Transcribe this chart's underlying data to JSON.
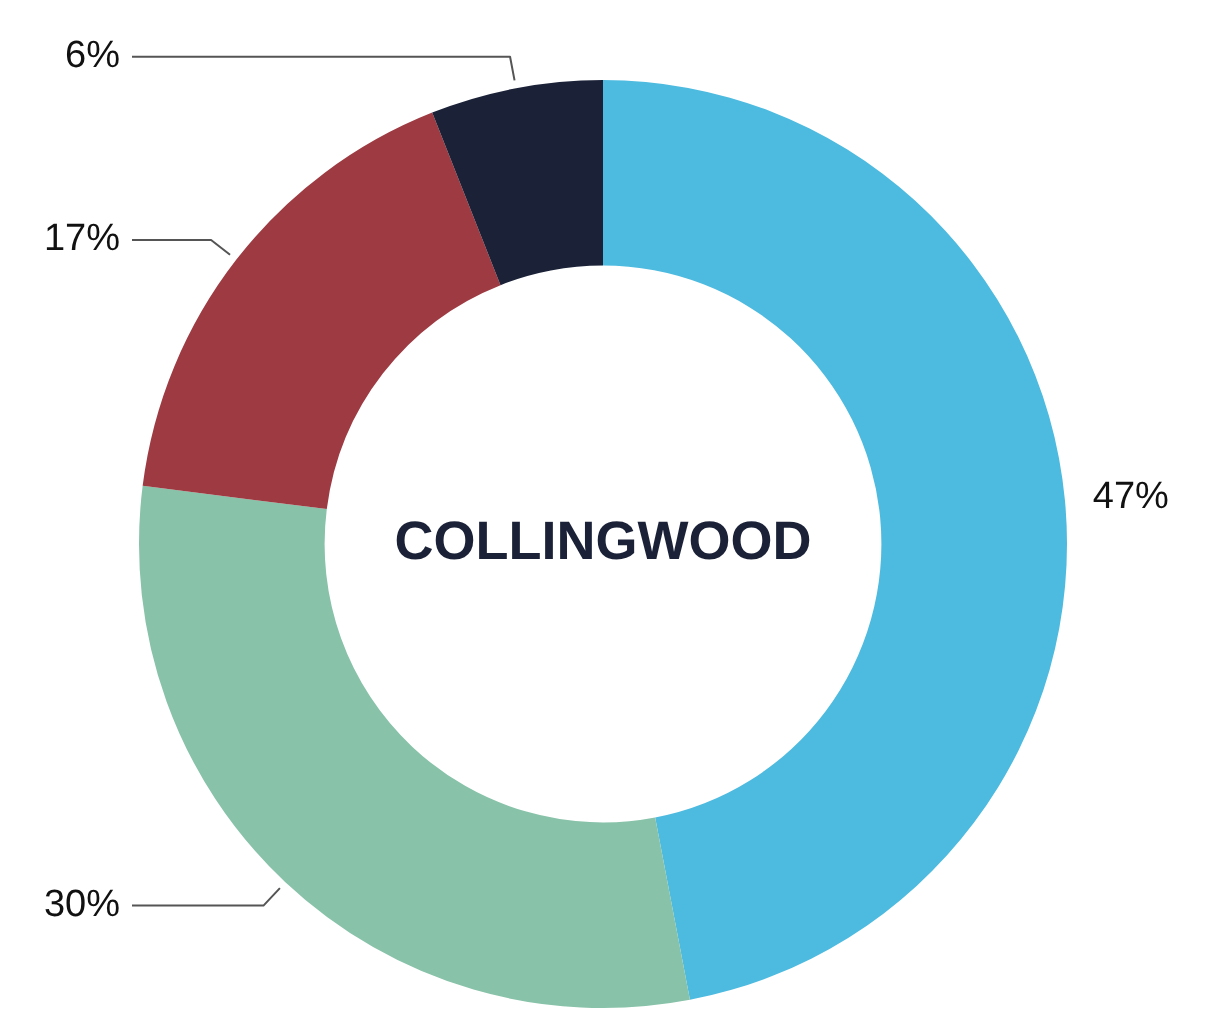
{
  "chart_data": {
    "type": "donut",
    "title": "COLLINGWOOD",
    "categories": [
      null,
      null,
      null,
      null
    ],
    "values": [
      47,
      30,
      17,
      6
    ],
    "colors": [
      "#4dbadf",
      "#87c2a9",
      "#9e3a42",
      "#1b2238"
    ],
    "value_labels": [
      "47%",
      "30%",
      "17%",
      "6%"
    ],
    "legend": false
  }
}
